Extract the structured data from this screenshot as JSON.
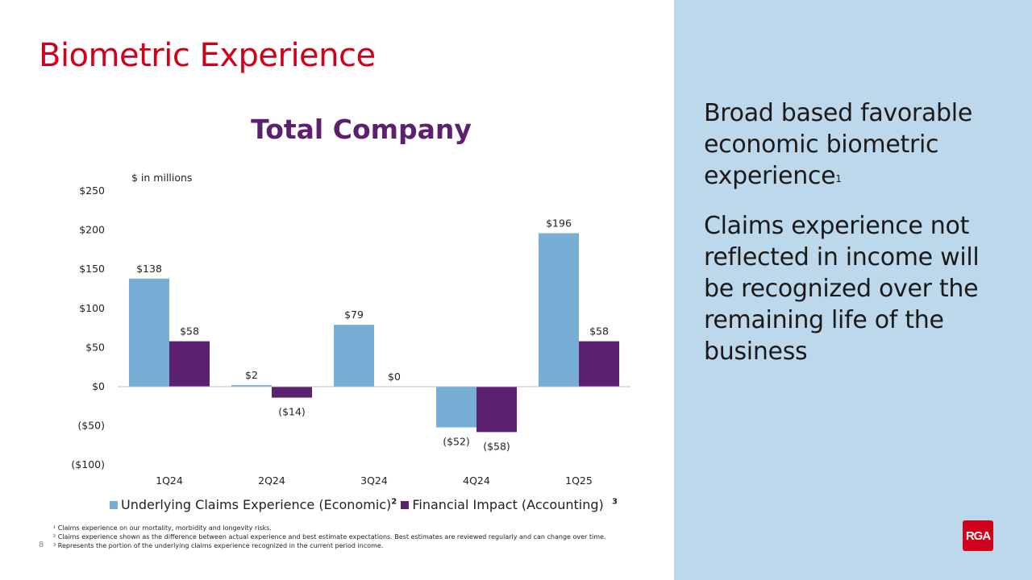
{
  "page_title": "Biometric Experience",
  "page_number": "8",
  "side_panel": {
    "point1": "Broad based favorable economic biometric experience",
    "point1_sup": "1",
    "point2": "Claims experience not reflected in income will be recognized over the remaining life of the business"
  },
  "chart_data": {
    "type": "bar",
    "title": "Total Company",
    "unit_note": "$ in millions",
    "categories": [
      "1Q24",
      "2Q24",
      "3Q24",
      "4Q24",
      "1Q25"
    ],
    "series": [
      {
        "name": "Underlying Claims Experience (Economic)",
        "sup": "2",
        "color": "#76aed6",
        "values": [
          138,
          2,
          79,
          -52,
          196
        ],
        "labels": [
          "$138",
          "$2",
          "$79",
          "($52)",
          "$196"
        ]
      },
      {
        "name": "Financial Impact (Accounting)",
        "sup": "3",
        "color": "#5b2170",
        "values": [
          58,
          -14,
          0,
          -58,
          58
        ],
        "labels": [
          "$58",
          "($14)",
          "$0",
          "($58)",
          "$58"
        ]
      }
    ],
    "ylim": [
      -100,
      250
    ],
    "yticks": [
      250,
      200,
      150,
      100,
      50,
      0,
      -50,
      -100
    ],
    "ytick_labels": [
      "$250",
      "$200",
      "$150",
      "$100",
      "$50",
      "$0",
      "($50)",
      "($100)"
    ],
    "grid": false,
    "legend_placement": "bottom"
  },
  "footnotes": [
    "¹ Claims experience on our mortality, morbidity and longevity risks.",
    "² Claims experience shown as the difference between actual experience and best estimate expectations. Best estimates are reviewed regularly and can change over time.",
    "³ Represents the portion of the underlying claims experience recognized in the current period income."
  ],
  "logo": "RGA"
}
